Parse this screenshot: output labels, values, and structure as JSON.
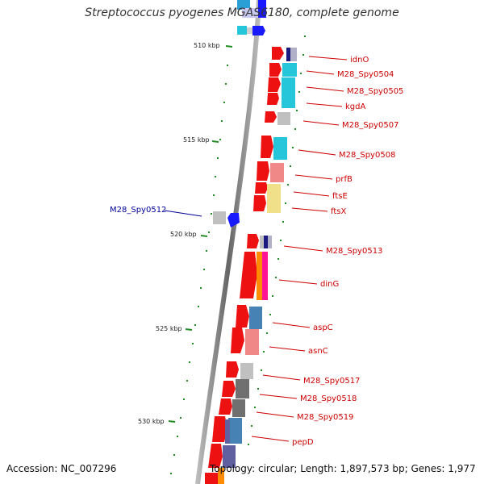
{
  "title": "Streptococcus pyogenes MGAS6180, complete genome",
  "footer": {
    "accession": "Accession: NC_007296",
    "summary": "Topology: circular; Length: 1,897,573 bp; Genes: 1,977"
  },
  "colors": {
    "forward_label": "#cc0000",
    "reverse_label": "#000099",
    "tick": "#228b22",
    "backbone": "#888888"
  },
  "scale_labels": [
    "510 kbp",
    "515 kbp",
    "520 kbp",
    "525 kbp",
    "530 kbp"
  ],
  "genes": [
    {
      "name": "idnO",
      "strand": "forward"
    },
    {
      "name": "M28_Spy0504",
      "strand": "forward"
    },
    {
      "name": "M28_Spy0505",
      "strand": "forward"
    },
    {
      "name": "kgdA",
      "strand": "forward"
    },
    {
      "name": "M28_Spy0507",
      "strand": "forward"
    },
    {
      "name": "M28_Spy0508",
      "strand": "forward"
    },
    {
      "name": "prfB",
      "strand": "forward"
    },
    {
      "name": "ftsE",
      "strand": "forward"
    },
    {
      "name": "ftsX",
      "strand": "forward"
    },
    {
      "name": "M28_Spy0512",
      "strand": "reverse"
    },
    {
      "name": "M28_Spy0513",
      "strand": "forward"
    },
    {
      "name": "dinG",
      "strand": "forward"
    },
    {
      "name": "aspC",
      "strand": "forward"
    },
    {
      "name": "asnC",
      "strand": "forward"
    },
    {
      "name": "M28_Spy0517",
      "strand": "forward"
    },
    {
      "name": "M28_Spy0518",
      "strand": "forward"
    },
    {
      "name": "M28_Spy0519",
      "strand": "forward"
    },
    {
      "name": "pepD",
      "strand": "forward"
    }
  ]
}
